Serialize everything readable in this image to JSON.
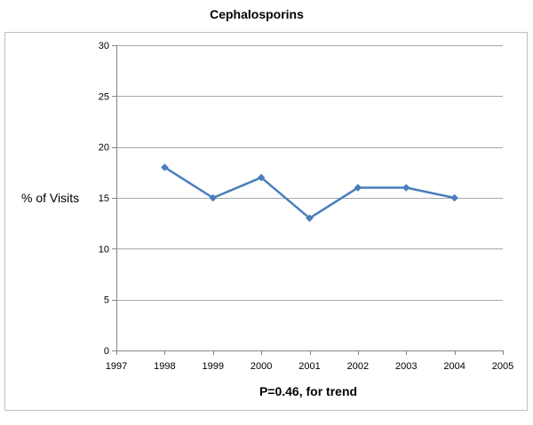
{
  "chart_data": {
    "type": "line",
    "title": "Cephalosporins",
    "xlabel": "P=0.46, for trend",
    "ylabel": "% of Visits",
    "xlim": [
      1997,
      2005
    ],
    "ylim": [
      0,
      30
    ],
    "xticks": [
      1997,
      1998,
      1999,
      2000,
      2001,
      2002,
      2003,
      2004,
      2005
    ],
    "yticks": [
      0,
      5,
      10,
      15,
      20,
      25,
      30
    ],
    "grid": true,
    "legend": "none",
    "series": [
      {
        "x": [
          1998,
          1999,
          2000,
          2001,
          2002,
          2003,
          2004
        ],
        "values": [
          18,
          15,
          17,
          13,
          16,
          16,
          15
        ],
        "color": "#4a7ebb",
        "marker": "diamond"
      }
    ]
  }
}
